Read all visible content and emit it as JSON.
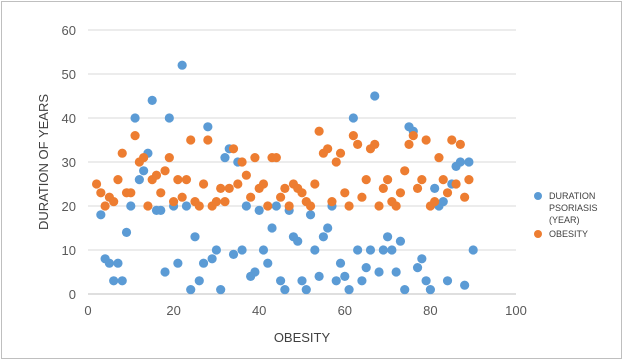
{
  "chart_data": {
    "type": "scatter",
    "title": "",
    "xlabel": "OBESITY",
    "ylabel": "DURATION OF YEARS",
    "xlim": [
      0,
      100
    ],
    "ylim": [
      0,
      60
    ],
    "xticks": [
      "0",
      "20",
      "40",
      "60",
      "80",
      "100"
    ],
    "yticks": [
      "0",
      "10",
      "20",
      "30",
      "40",
      "50",
      "60"
    ],
    "grid": "horizontal",
    "legend_position": "right",
    "series": [
      {
        "name_lines": [
          "DURATION",
          "PSORIASIS",
          "(YEAR)"
        ],
        "color": "#5b9bd5",
        "points": [
          [
            3,
            18
          ],
          [
            4,
            8
          ],
          [
            5,
            7
          ],
          [
            6,
            3
          ],
          [
            7,
            7
          ],
          [
            8,
            3
          ],
          [
            9,
            14
          ],
          [
            10,
            20
          ],
          [
            11,
            40
          ],
          [
            12,
            26
          ],
          [
            13,
            28
          ],
          [
            14,
            32
          ],
          [
            15,
            44
          ],
          [
            16,
            19
          ],
          [
            17,
            19
          ],
          [
            18,
            5
          ],
          [
            19,
            40
          ],
          [
            20,
            20
          ],
          [
            21,
            7
          ],
          [
            22,
            52
          ],
          [
            23,
            20
          ],
          [
            24,
            1
          ],
          [
            25,
            13
          ],
          [
            26,
            3
          ],
          [
            27,
            7
          ],
          [
            28,
            38
          ],
          [
            29,
            8
          ],
          [
            30,
            10
          ],
          [
            31,
            1
          ],
          [
            32,
            31
          ],
          [
            33,
            33
          ],
          [
            34,
            9
          ],
          [
            35,
            30
          ],
          [
            36,
            10
          ],
          [
            37,
            20
          ],
          [
            38,
            4
          ],
          [
            39,
            5
          ],
          [
            40,
            19
          ],
          [
            41,
            10
          ],
          [
            42,
            7
          ],
          [
            43,
            15
          ],
          [
            44,
            20
          ],
          [
            45,
            3
          ],
          [
            46,
            1
          ],
          [
            47,
            19
          ],
          [
            48,
            13
          ],
          [
            49,
            12
          ],
          [
            50,
            3
          ],
          [
            51,
            1
          ],
          [
            52,
            18
          ],
          [
            53,
            10
          ],
          [
            54,
            4
          ],
          [
            55,
            13
          ],
          [
            56,
            15
          ],
          [
            57,
            20
          ],
          [
            58,
            3
          ],
          [
            59,
            7
          ],
          [
            60,
            4
          ],
          [
            61,
            1
          ],
          [
            62,
            40
          ],
          [
            63,
            10
          ],
          [
            64,
            3
          ],
          [
            65,
            6
          ],
          [
            66,
            10
          ],
          [
            67,
            45
          ],
          [
            68,
            5
          ],
          [
            69,
            10
          ],
          [
            70,
            13
          ],
          [
            71,
            10
          ],
          [
            72,
            5
          ],
          [
            73,
            12
          ],
          [
            74,
            1
          ],
          [
            75,
            38
          ],
          [
            76,
            37
          ],
          [
            77,
            6
          ],
          [
            78,
            8
          ],
          [
            79,
            3
          ],
          [
            80,
            1
          ],
          [
            81,
            24
          ],
          [
            82,
            20
          ],
          [
            83,
            21
          ],
          [
            84,
            3
          ],
          [
            85,
            25
          ],
          [
            86,
            29
          ],
          [
            87,
            30
          ],
          [
            88,
            2
          ],
          [
            89,
            30
          ],
          [
            90,
            10
          ]
        ]
      },
      {
        "name_lines": [
          "OBESITY"
        ],
        "color": "#ed7d31",
        "points": [
          [
            2,
            25
          ],
          [
            3,
            23
          ],
          [
            4,
            20
          ],
          [
            5,
            22
          ],
          [
            6,
            21
          ],
          [
            7,
            26
          ],
          [
            8,
            32
          ],
          [
            9,
            23
          ],
          [
            10,
            23
          ],
          [
            11,
            36
          ],
          [
            12,
            30
          ],
          [
            13,
            31
          ],
          [
            14,
            20
          ],
          [
            15,
            26
          ],
          [
            16,
            27
          ],
          [
            17,
            23
          ],
          [
            18,
            28
          ],
          [
            19,
            31
          ],
          [
            20,
            21
          ],
          [
            21,
            26
          ],
          [
            22,
            22
          ],
          [
            23,
            26
          ],
          [
            24,
            35
          ],
          [
            25,
            21
          ],
          [
            26,
            20
          ],
          [
            27,
            25
          ],
          [
            28,
            35
          ],
          [
            29,
            20
          ],
          [
            30,
            21
          ],
          [
            31,
            24
          ],
          [
            32,
            21
          ],
          [
            33,
            24
          ],
          [
            34,
            33
          ],
          [
            35,
            25
          ],
          [
            36,
            30
          ],
          [
            37,
            27
          ],
          [
            38,
            22
          ],
          [
            39,
            31
          ],
          [
            40,
            24
          ],
          [
            41,
            25
          ],
          [
            42,
            20
          ],
          [
            43,
            31
          ],
          [
            44,
            31
          ],
          [
            45,
            22
          ],
          [
            46,
            24
          ],
          [
            47,
            20
          ],
          [
            48,
            25
          ],
          [
            49,
            24
          ],
          [
            50,
            23
          ],
          [
            51,
            21
          ],
          [
            52,
            20
          ],
          [
            53,
            25
          ],
          [
            54,
            37
          ],
          [
            55,
            32
          ],
          [
            56,
            33
          ],
          [
            57,
            21
          ],
          [
            58,
            30
          ],
          [
            59,
            32
          ],
          [
            60,
            23
          ],
          [
            61,
            20
          ],
          [
            62,
            36
          ],
          [
            63,
            34
          ],
          [
            64,
            22
          ],
          [
            65,
            26
          ],
          [
            66,
            33
          ],
          [
            67,
            34
          ],
          [
            68,
            20
          ],
          [
            69,
            24
          ],
          [
            70,
            26
          ],
          [
            71,
            21
          ],
          [
            72,
            20
          ],
          [
            73,
            23
          ],
          [
            74,
            28
          ],
          [
            75,
            34
          ],
          [
            76,
            36
          ],
          [
            77,
            24
          ],
          [
            78,
            26
          ],
          [
            79,
            35
          ],
          [
            80,
            20
          ],
          [
            81,
            21
          ],
          [
            82,
            31
          ],
          [
            83,
            26
          ],
          [
            84,
            23
          ],
          [
            85,
            35
          ],
          [
            86,
            25
          ],
          [
            87,
            34
          ],
          [
            88,
            22
          ],
          [
            89,
            26
          ]
        ]
      }
    ]
  }
}
